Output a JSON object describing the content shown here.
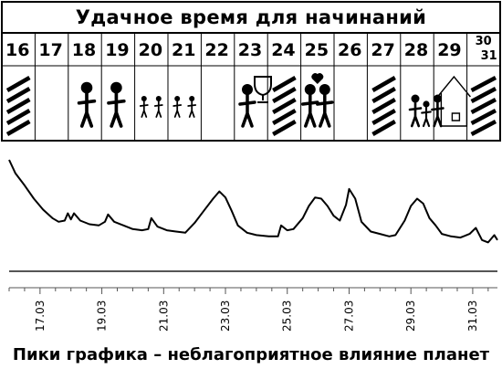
{
  "calendar": {
    "title": "Удачное время для начинаний",
    "days": [
      {
        "label": "16",
        "mark": "hatched"
      },
      {
        "label": "17",
        "mark": "none"
      },
      {
        "label": "18",
        "mark": "handshake"
      },
      {
        "label": "19",
        "mark": "handshake"
      },
      {
        "label": "20",
        "mark": "crowd"
      },
      {
        "label": "21",
        "mark": "crowd"
      },
      {
        "label": "22",
        "mark": "none"
      },
      {
        "label": "23",
        "mark": "trophy"
      },
      {
        "label": "24",
        "mark": "hatched"
      },
      {
        "label": "25",
        "mark": "lovers"
      },
      {
        "label": "26",
        "mark": "none"
      },
      {
        "label": "27",
        "mark": "hatched"
      },
      {
        "label": "28",
        "mark": "house"
      },
      {
        "label": "29",
        "mark": "house"
      },
      {
        "label": "30",
        "mark": "hatched"
      },
      {
        "label": "31",
        "mark": "hatched"
      }
    ]
  },
  "chart_data": {
    "type": "line",
    "title": "",
    "xlabel": "",
    "ylabel": "",
    "grid": false,
    "xlim": [
      16.0,
      31.8
    ],
    "ylim": [
      0,
      10
    ],
    "tick_labels": [
      "17.03",
      "19.03",
      "21.03",
      "23.03",
      "25.03",
      "27.03",
      "29.03",
      "31.03"
    ],
    "tick_values": [
      17,
      19,
      21,
      23,
      25,
      27,
      29,
      31
    ],
    "x": [
      16.0,
      16.2,
      16.5,
      16.8,
      17.1,
      17.4,
      17.6,
      17.8,
      17.9,
      18.0,
      18.1,
      18.3,
      18.6,
      18.9,
      19.1,
      19.2,
      19.4,
      19.7,
      20.0,
      20.3,
      20.5,
      20.6,
      20.8,
      21.1,
      21.4,
      21.7,
      22.0,
      22.3,
      22.6,
      22.8,
      23.0,
      23.2,
      23.4,
      23.7,
      24.0,
      24.4,
      24.7,
      24.8,
      25.0,
      25.2,
      25.5,
      25.7,
      25.9,
      26.1,
      26.3,
      26.5,
      26.7,
      26.9,
      27.0,
      27.2,
      27.4,
      27.7,
      28.0,
      28.3,
      28.5,
      28.8,
      29.0,
      29.2,
      29.4,
      29.6,
      29.8,
      30.0,
      30.3,
      30.6,
      30.9,
      31.1,
      31.3,
      31.5,
      31.7,
      31.8
    ],
    "series": [
      {
        "values": [
          9.4,
          8.3,
          7.3,
          6.2,
          5.3,
          4.6,
          4.3,
          4.4,
          5.0,
          4.5,
          5.0,
          4.4,
          4.1,
          4.0,
          4.3,
          4.9,
          4.3,
          4.0,
          3.7,
          3.6,
          3.7,
          4.6,
          3.9,
          3.6,
          3.5,
          3.4,
          4.2,
          5.2,
          6.2,
          6.8,
          6.3,
          5.2,
          4.0,
          3.4,
          3.2,
          3.1,
          3.1,
          4.0,
          3.6,
          3.7,
          4.6,
          5.6,
          6.3,
          6.2,
          5.6,
          4.8,
          4.4,
          5.7,
          7.0,
          6.2,
          4.3,
          3.5,
          3.3,
          3.1,
          3.2,
          4.4,
          5.6,
          6.2,
          5.8,
          4.6,
          4.0,
          3.3,
          3.1,
          3.0,
          3.3,
          3.8,
          2.8,
          2.6,
          3.2,
          2.8
        ]
      }
    ]
  },
  "footer": {
    "text": "Пики графика – неблагоприятное влияние планет"
  },
  "colors": {
    "ink": "#000000",
    "background": "#ffffff",
    "axis": "#555555"
  }
}
